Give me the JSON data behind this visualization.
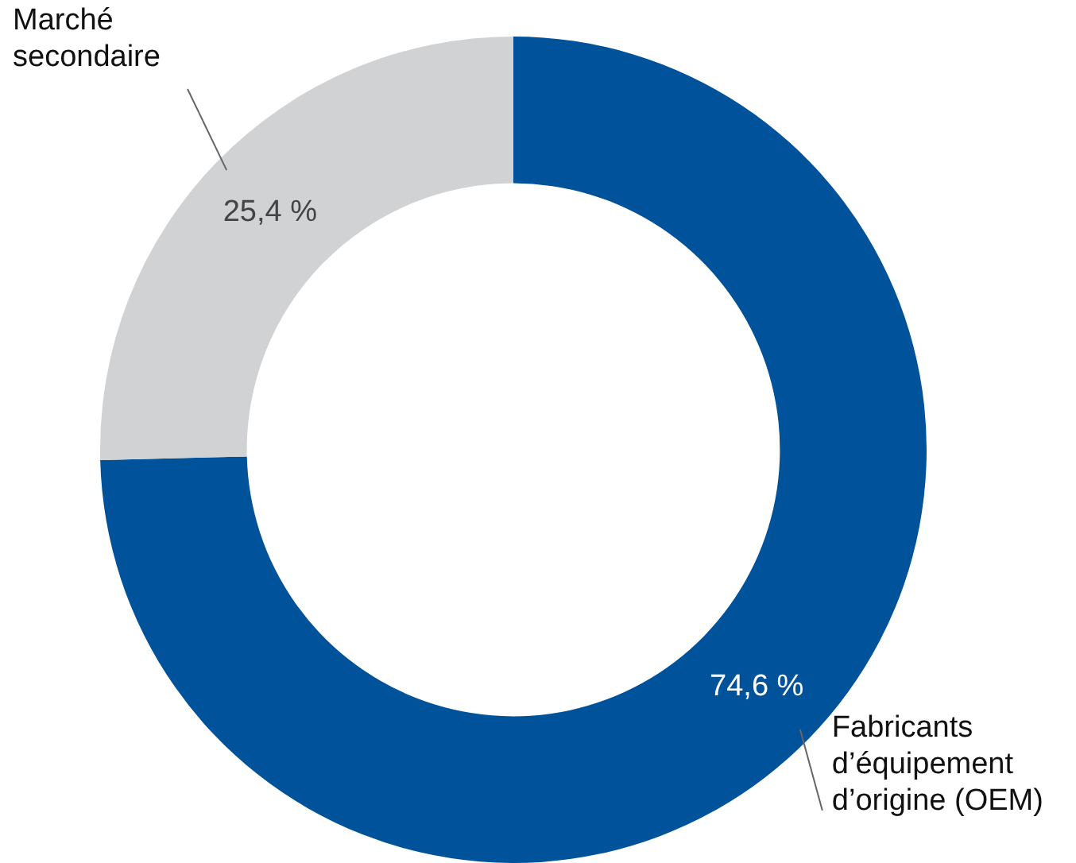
{
  "chart_data": {
    "type": "donut",
    "categories": [
      "Fabricants d’équipement d’origine (OEM)",
      "Marché secondaire"
    ],
    "values": [
      74.6,
      25.4
    ],
    "colors": [
      "#00529b",
      "#d1d2d4"
    ],
    "value_labels": [
      "74,6 %",
      "25,4 %"
    ],
    "legend": false
  }
}
